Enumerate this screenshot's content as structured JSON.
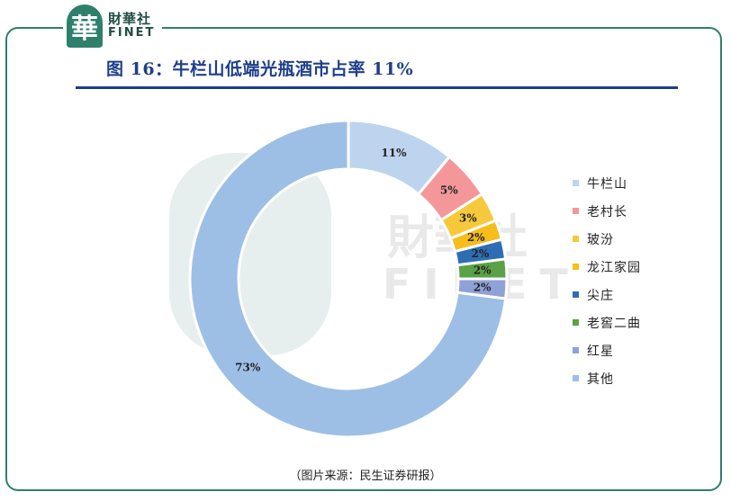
{
  "header": {
    "brand_cn": "財華社",
    "brand_en": "FINET",
    "brand_mark": "華"
  },
  "title": "图 16：牛栏山低端光瓶酒市占率 11%",
  "source": "（图片来源：民生证券研报）",
  "watermark": {
    "cn": "財華社",
    "en": "FINET"
  },
  "colors": {
    "frame": "#2f7f6d",
    "title": "#1f3e8a"
  },
  "chart_data": {
    "type": "pie",
    "donut": true,
    "title": "",
    "categories": [
      "牛栏山",
      "老村长",
      "玻汾",
      "龙江家园",
      "尖庄",
      "老窖二曲",
      "红星",
      "其他"
    ],
    "values": [
      11,
      5,
      3,
      2,
      2,
      2,
      2,
      73
    ],
    "labels": [
      "11%",
      "5%",
      "3%",
      "2%",
      "2%",
      "2%",
      "2%",
      "73%"
    ],
    "colors": [
      "#bdd4ee",
      "#f4979a",
      "#f6c93d",
      "#f7bd1c",
      "#2e6db4",
      "#5aa245",
      "#8ea2d8",
      "#9dbfe5"
    ],
    "legend_position": "right"
  }
}
